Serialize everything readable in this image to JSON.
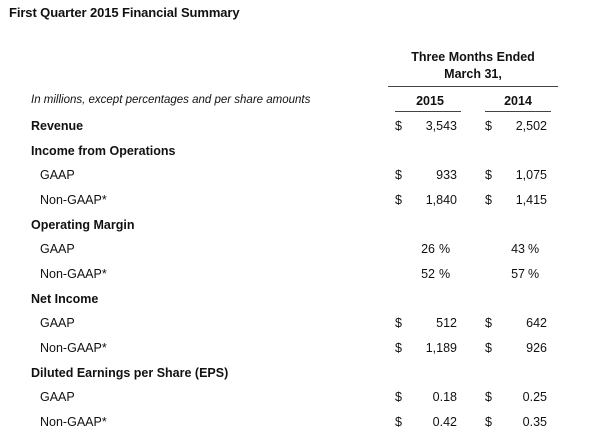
{
  "title": "First Quarter 2015 Financial Summary",
  "header": {
    "period_line1": "Three Months Ended",
    "period_line2": "March 31,",
    "caption": "In millions, except percentages and per share amounts",
    "year1": "2015",
    "year2": "2014"
  },
  "rows": [
    {
      "label": "Revenue",
      "type": "section",
      "c2015": {
        "cur": "$",
        "val": "3,543"
      },
      "c2014": {
        "cur": "$",
        "val": "2,502"
      }
    },
    {
      "label": "Income from Operations",
      "type": "section"
    },
    {
      "label": "GAAP",
      "type": "sub",
      "c2015": {
        "cur": "$",
        "val": "933"
      },
      "c2014": {
        "cur": "$",
        "val": "1,075"
      }
    },
    {
      "label": "Non-GAAP*",
      "type": "sub",
      "c2015": {
        "cur": "$",
        "val": "1,840"
      },
      "c2014": {
        "cur": "$",
        "val": "1,415"
      }
    },
    {
      "label": "Operating Margin",
      "type": "section"
    },
    {
      "label": "GAAP",
      "type": "sub",
      "pct": true,
      "c2015": {
        "val": "26",
        "sym": "%"
      },
      "c2014": {
        "val": "43",
        "sym": "%"
      }
    },
    {
      "label": "Non-GAAP*",
      "type": "sub",
      "pct": true,
      "c2015": {
        "val": "52",
        "sym": "%"
      },
      "c2014": {
        "val": "57",
        "sym": "%"
      }
    },
    {
      "label": "Net Income",
      "type": "section"
    },
    {
      "label": "GAAP",
      "type": "sub",
      "c2015": {
        "cur": "$",
        "val": "512"
      },
      "c2014": {
        "cur": "$",
        "val": "642"
      }
    },
    {
      "label": "Non-GAAP*",
      "type": "sub",
      "c2015": {
        "cur": "$",
        "val": "1,189"
      },
      "c2014": {
        "cur": "$",
        "val": "926"
      }
    },
    {
      "label": "Diluted Earnings per Share (EPS)",
      "type": "section"
    },
    {
      "label": "GAAP",
      "type": "sub",
      "c2015": {
        "cur": "$",
        "val": "0.18"
      },
      "c2014": {
        "cur": "$",
        "val": "0.25"
      }
    },
    {
      "label": "Non-GAAP*",
      "type": "sub",
      "c2015": {
        "cur": "$",
        "val": "0.42"
      },
      "c2014": {
        "cur": "$",
        "val": "0.35"
      }
    }
  ]
}
